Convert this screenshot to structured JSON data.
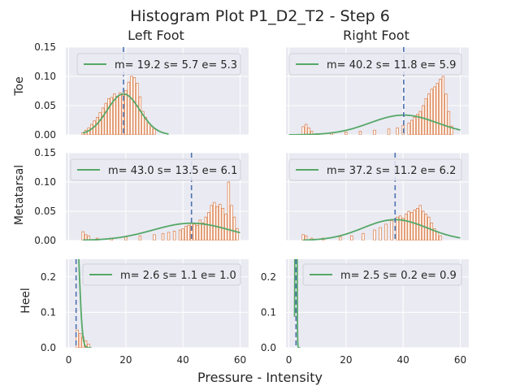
{
  "figure": {
    "title": "Histogram Plot P1_D2_T2 - Step 6",
    "xlabel": "Pressure - Intensity",
    "columns": [
      "Left Foot",
      "Right Foot"
    ],
    "rows": [
      "Toe",
      "Metatarsal",
      "Heel"
    ]
  },
  "colors": {
    "background": "#eaeaf2",
    "grid": "#ffffff",
    "bars": "#dd8452",
    "curve": "#55a868",
    "mean_line": "#4c72b0"
  },
  "chart_data": [
    {
      "type": "bar",
      "row": "Toe",
      "column": "Left Foot",
      "legend": "m= 19.2 s= 5.7 e= 5.3",
      "mean": 19.2,
      "sd": 5.7,
      "err": 5.3,
      "xlim": [
        -1,
        63
      ],
      "ylim": [
        0,
        0.15
      ],
      "yticks": [
        0.0,
        0.05,
        0.1,
        0.15
      ],
      "ytick_labels": [
        "0.00",
        "0.05",
        "0.10",
        "0.15"
      ],
      "bars": [
        [
          5,
          0.004
        ],
        [
          6,
          0.008
        ],
        [
          7,
          0.012
        ],
        [
          8,
          0.018
        ],
        [
          9,
          0.024
        ],
        [
          10,
          0.03
        ],
        [
          11,
          0.038
        ],
        [
          12,
          0.046
        ],
        [
          13,
          0.054
        ],
        [
          14,
          0.062
        ],
        [
          15,
          0.064
        ],
        [
          16,
          0.07
        ],
        [
          17,
          0.066
        ],
        [
          18,
          0.072
        ],
        [
          19,
          0.068
        ],
        [
          20,
          0.076
        ],
        [
          21,
          0.09
        ],
        [
          22,
          0.1
        ],
        [
          23,
          0.098
        ],
        [
          24,
          0.088
        ],
        [
          25,
          0.065
        ],
        [
          26,
          0.04
        ],
        [
          27,
          0.03
        ],
        [
          28,
          0.02
        ],
        [
          29,
          0.014
        ],
        [
          30,
          0.01
        ]
      ],
      "curve_x": [
        5,
        35
      ]
    },
    {
      "type": "bar",
      "row": "Toe",
      "column": "Right Foot",
      "legend": "m= 40.2 s= 11.8 e= 5.9",
      "mean": 40.2,
      "sd": 11.8,
      "err": 5.9,
      "xlim": [
        -1,
        63
      ],
      "ylim": [
        0,
        0.15
      ],
      "yticks": [
        0.0,
        0.05,
        0.1,
        0.15
      ],
      "ytick_labels": [],
      "bars": [
        [
          5,
          0.014
        ],
        [
          6,
          0.018
        ],
        [
          7,
          0.012
        ],
        [
          8,
          0.006
        ],
        [
          10,
          0.002
        ],
        [
          15,
          0.004
        ],
        [
          20,
          0.005
        ],
        [
          25,
          0.006
        ],
        [
          30,
          0.008
        ],
        [
          35,
          0.01
        ],
        [
          38,
          0.012
        ],
        [
          40,
          0.016
        ],
        [
          42,
          0.02
        ],
        [
          43,
          0.025
        ],
        [
          44,
          0.03
        ],
        [
          45,
          0.035
        ],
        [
          46,
          0.04
        ],
        [
          47,
          0.05
        ],
        [
          48,
          0.062
        ],
        [
          49,
          0.07
        ],
        [
          50,
          0.078
        ],
        [
          51,
          0.082
        ],
        [
          52,
          0.088
        ],
        [
          53,
          0.095
        ],
        [
          54,
          0.1
        ],
        [
          55,
          0.07
        ],
        [
          56,
          0.04
        ],
        [
          57,
          0.015
        ]
      ],
      "curve_x": [
        0,
        60
      ]
    },
    {
      "type": "bar",
      "row": "Metatarsal",
      "column": "Left Foot",
      "legend": "m= 43.0 s= 13.5 e= 6.1",
      "mean": 43.0,
      "sd": 13.5,
      "err": 6.1,
      "xlim": [
        -1,
        63
      ],
      "ylim": [
        0,
        0.15
      ],
      "yticks": [
        0.0,
        0.05,
        0.1,
        0.15
      ],
      "ytick_labels": [
        "0.00",
        "0.05",
        "0.10",
        "0.15"
      ],
      "bars": [
        [
          5,
          0.015
        ],
        [
          6,
          0.01
        ],
        [
          7,
          0.008
        ],
        [
          10,
          0.004
        ],
        [
          15,
          0.004
        ],
        [
          20,
          0.006
        ],
        [
          25,
          0.008
        ],
        [
          30,
          0.01
        ],
        [
          33,
          0.012
        ],
        [
          35,
          0.014
        ],
        [
          37,
          0.016
        ],
        [
          39,
          0.018
        ],
        [
          40,
          0.02
        ],
        [
          41,
          0.024
        ],
        [
          42,
          0.026
        ],
        [
          43,
          0.03
        ],
        [
          44,
          0.028
        ],
        [
          45,
          0.026
        ],
        [
          46,
          0.035
        ],
        [
          47,
          0.03
        ],
        [
          48,
          0.04
        ],
        [
          49,
          0.048
        ],
        [
          50,
          0.06
        ],
        [
          51,
          0.065
        ],
        [
          52,
          0.058
        ],
        [
          53,
          0.062
        ],
        [
          54,
          0.055
        ],
        [
          55,
          0.045
        ],
        [
          56,
          0.1
        ],
        [
          57,
          0.06
        ],
        [
          58,
          0.04
        ],
        [
          59,
          0.02
        ]
      ],
      "curve_x": [
        5,
        60
      ]
    },
    {
      "type": "bar",
      "row": "Metatarsal",
      "column": "Right Foot",
      "legend": "m= 37.2 s= 11.2 e= 6.2",
      "mean": 37.2,
      "sd": 11.2,
      "err": 6.2,
      "xlim": [
        -1,
        63
      ],
      "ylim": [
        0,
        0.15
      ],
      "yticks": [
        0.0,
        0.05,
        0.1,
        0.15
      ],
      "ytick_labels": [],
      "bars": [
        [
          5,
          0.01
        ],
        [
          6,
          0.008
        ],
        [
          8,
          0.004
        ],
        [
          12,
          0.004
        ],
        [
          18,
          0.006
        ],
        [
          22,
          0.008
        ],
        [
          26,
          0.012
        ],
        [
          30,
          0.018
        ],
        [
          32,
          0.022
        ],
        [
          34,
          0.028
        ],
        [
          36,
          0.034
        ],
        [
          38,
          0.04
        ],
        [
          39,
          0.042
        ],
        [
          40,
          0.038
        ],
        [
          41,
          0.045
        ],
        [
          42,
          0.05
        ],
        [
          43,
          0.048
        ],
        [
          44,
          0.052
        ],
        [
          45,
          0.055
        ],
        [
          46,
          0.06
        ],
        [
          47,
          0.05
        ],
        [
          48,
          0.045
        ],
        [
          49,
          0.04
        ],
        [
          50,
          0.03
        ],
        [
          51,
          0.02
        ],
        [
          52,
          0.015
        ],
        [
          53,
          0.008
        ]
      ],
      "curve_x": [
        5,
        60
      ]
    },
    {
      "type": "bar",
      "row": "Heel",
      "column": "Left Foot",
      "legend": "m= 2.6 s= 1.1 e= 1.0",
      "mean": 2.6,
      "sd": 1.1,
      "err": 1.0,
      "xlim": [
        -1,
        63
      ],
      "ylim": [
        0,
        0.25
      ],
      "yticks": [
        0.0,
        0.1,
        0.2
      ],
      "ytick_labels": [
        "0.0",
        "0.1",
        "0.2"
      ],
      "bars": [
        [
          3,
          0.05
        ],
        [
          4,
          0.04
        ],
        [
          5,
          0.03
        ],
        [
          6,
          0.02
        ],
        [
          7,
          0.01
        ]
      ],
      "curve_x": [
        2,
        8
      ]
    },
    {
      "type": "bar",
      "row": "Heel",
      "column": "Right Foot",
      "legend": "m= 2.5 s= 0.2 e= 0.9",
      "mean": 2.5,
      "sd": 0.2,
      "err": 0.9,
      "xlim": [
        -1,
        63
      ],
      "ylim": [
        0,
        0.25
      ],
      "yticks": [
        0.0,
        0.1,
        0.2
      ],
      "ytick_labels": [
        "0.0",
        "0.1",
        "0.2"
      ],
      "bars": [],
      "curve_x": [
        2,
        4
      ]
    }
  ],
  "xticks": [
    0,
    20,
    40,
    60
  ],
  "xtick_labels": [
    "0",
    "20",
    "40",
    "60"
  ]
}
